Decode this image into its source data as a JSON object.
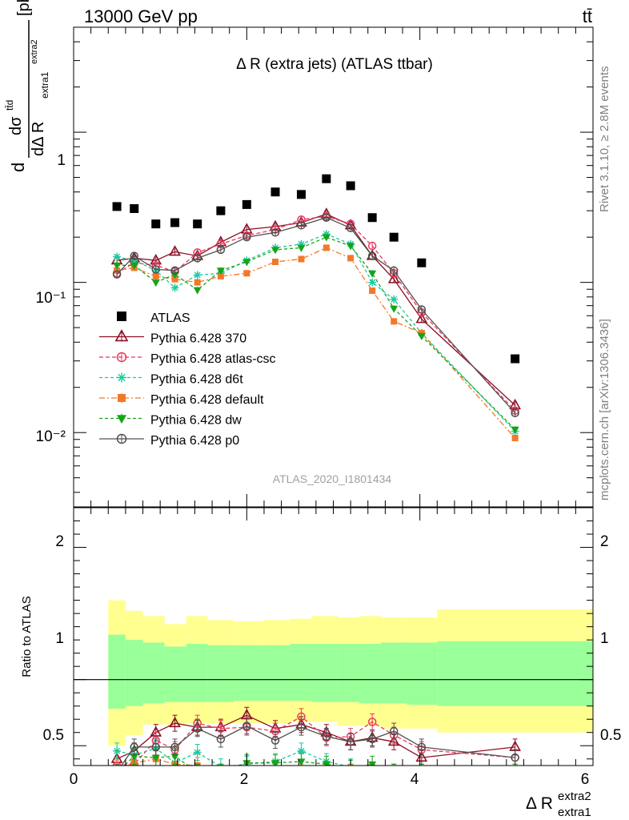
{
  "header": {
    "left_label": "13000 GeV pp",
    "right_label": "tt̄"
  },
  "side_labels": {
    "upper": "Rivet 3.1.10, ≥ 2.8M events",
    "lower": "mcplots.cern.ch [arXiv:1306.3436]"
  },
  "colors": {
    "ATLAS": "#000000",
    "p370": "#8b0f24",
    "atlascsc": "#e8385e",
    "d6t": "#1ec8a0",
    "default": "#f07a2a",
    "dw": "#17a317",
    "p0": "#505050",
    "band_yellow": "#ffff90",
    "band_green": "#99ff99"
  },
  "chart_data": [
    {
      "type": "scatter",
      "title": "Δ R (extra jets) (ATLAS ttbar)",
      "watermark": "ATLAS_2020_I1801434",
      "xlabel": "Δ R",
      "xlabel_sup": "extra2",
      "xlabel_sub": "extra1",
      "ylabel_main": "d",
      "ylabel_num": "dσ",
      "ylabel_num_sup": "tt̄d",
      "ylabel_den": "dΔ R",
      "ylabel_den_sub": "extra1",
      "ylabel_den_sup": "extra2",
      "ylabel_unit": "[pb]",
      "yscale": "log",
      "xlim": [
        0,
        6
      ],
      "ylim": [
        0.0032,
        5
      ],
      "y_tick_labels": [
        "10⁻²",
        "10⁻¹",
        "1"
      ],
      "x": [
        0.5,
        0.7,
        0.95,
        1.17,
        1.43,
        1.7,
        2.0,
        2.33,
        2.63,
        2.92,
        3.2,
        3.45,
        3.7,
        4.02,
        5.1
      ],
      "series": [
        {
          "name": "ATLAS",
          "key": "ATLAS",
          "values": [
            0.32,
            0.31,
            0.245,
            0.25,
            0.245,
            0.3,
            0.33,
            0.4,
            0.385,
            0.49,
            0.44,
            0.27,
            0.2,
            0.135,
            0.031
          ]
        },
        {
          "name": "Pythia 6.428 370",
          "key": "p370",
          "values": [
            0.14,
            0.145,
            0.14,
            0.16,
            0.15,
            0.185,
            0.225,
            0.235,
            0.25,
            0.285,
            0.24,
            0.15,
            0.105,
            0.057,
            0.0152
          ]
        },
        {
          "name": "Pythia 6.428 atlas-csc",
          "key": "atlascsc",
          "values": [
            0.115,
            0.135,
            0.13,
            0.118,
            0.158,
            0.18,
            0.205,
            0.225,
            0.262,
            0.275,
            0.245,
            0.175,
            0.115,
            0.063,
            0.014
          ]
        },
        {
          "name": "Pythia 6.428 d6t",
          "key": "d6t",
          "values": [
            0.148,
            0.14,
            0.12,
            0.092,
            0.112,
            0.115,
            0.14,
            0.17,
            0.18,
            0.21,
            0.18,
            0.1,
            0.077,
            0.046,
            0.0102
          ]
        },
        {
          "name": "Pythia 6.428 default",
          "key": "default",
          "values": [
            0.12,
            0.125,
            0.11,
            0.105,
            0.1,
            0.11,
            0.115,
            0.137,
            0.143,
            0.17,
            0.145,
            0.088,
            0.055,
            0.046,
            0.0092
          ]
        },
        {
          "name": "Pythia 6.428 dw",
          "key": "dw",
          "values": [
            0.13,
            0.13,
            0.1,
            0.113,
            0.089,
            0.12,
            0.137,
            0.165,
            0.17,
            0.2,
            0.175,
            0.115,
            0.067,
            0.044,
            0.0105
          ]
        },
        {
          "name": "Pythia 6.428 p0",
          "key": "p0",
          "values": [
            0.113,
            0.15,
            0.122,
            0.12,
            0.145,
            0.165,
            0.2,
            0.215,
            0.24,
            0.27,
            0.23,
            0.15,
            0.12,
            0.066,
            0.0135
          ]
        }
      ]
    },
    {
      "type": "scatter",
      "ylabel": "Ratio to ATLAS",
      "xlim": [
        0,
        6
      ],
      "ylim": [
        0.35,
        2.3
      ],
      "x_tick_labels": [
        "0",
        "2",
        "4",
        "6"
      ],
      "y_tick_labels": [
        "0.5",
        "1",
        "2"
      ],
      "band_edges": [
        0.4,
        0.6,
        0.8,
        1.05,
        1.3,
        1.55,
        1.85,
        2.2,
        2.5,
        2.75,
        3.05,
        3.3,
        3.55,
        3.85,
        4.2,
        6.0
      ],
      "band_yellow_hi": [
        1.6,
        1.52,
        1.48,
        1.42,
        1.48,
        1.45,
        1.44,
        1.45,
        1.46,
        1.48,
        1.47,
        1.48,
        1.47,
        1.47,
        1.53
      ],
      "band_yellow_lo": [
        0.5,
        0.58,
        0.66,
        0.66,
        0.67,
        0.67,
        0.67,
        0.67,
        0.68,
        0.68,
        0.65,
        0.65,
        0.63,
        0.63,
        0.6
      ],
      "band_green_hi": [
        1.34,
        1.3,
        1.28,
        1.25,
        1.27,
        1.26,
        1.26,
        1.26,
        1.27,
        1.27,
        1.27,
        1.27,
        1.28,
        1.28,
        1.29
      ],
      "band_green_lo": [
        0.78,
        0.8,
        0.82,
        0.83,
        0.83,
        0.83,
        0.84,
        0.84,
        0.84,
        0.83,
        0.83,
        0.82,
        0.82,
        0.81,
        0.8
      ],
      "reference_line": 1,
      "x": [
        0.5,
        0.7,
        0.95,
        1.17,
        1.43,
        1.7,
        2.0,
        2.33,
        2.63,
        2.92,
        3.2,
        3.45,
        3.7,
        4.02,
        5.1
      ],
      "series": [
        {
          "key": "p370",
          "values": [
            0.4,
            0.46,
            0.6,
            0.67,
            0.64,
            0.64,
            0.73,
            0.63,
            0.66,
            0.6,
            0.53,
            0.56,
            0.53,
            0.41,
            0.49
          ]
        },
        {
          "key": "atlascsc",
          "values": [
            0.35,
            0.36,
            0.54,
            0.47,
            0.67,
            0.63,
            0.64,
            0.61,
            0.72,
            0.56,
            0.57,
            0.68,
            0.58,
            0.47,
            0.41
          ]
        },
        {
          "key": "d6t",
          "values": [
            0.46,
            0.43,
            0.48,
            0.37,
            0.45,
            0.34,
            0.36,
            0.38,
            0.46,
            0.38,
            0.34,
            0.3,
            0.3,
            0.3,
            0.3
          ]
        },
        {
          "key": "default",
          "values": [
            0.33,
            0.37,
            0.4,
            0.36,
            0.35,
            0.3,
            0.3,
            0.3,
            0.3,
            0.3,
            0.3,
            0.3,
            0.3,
            0.3,
            0.3
          ]
        },
        {
          "key": "dw",
          "values": [
            0.3,
            0.42,
            0.41,
            0.42,
            0.3,
            0.3,
            0.37,
            0.37,
            0.38,
            0.36,
            0.33,
            0.36,
            0.3,
            0.3,
            0.3
          ]
        },
        {
          "key": "p0",
          "values": [
            0.3,
            0.49,
            0.49,
            0.49,
            0.63,
            0.55,
            0.65,
            0.54,
            0.64,
            0.57,
            0.53,
            0.55,
            0.61,
            0.49,
            0.41
          ]
        }
      ]
    }
  ]
}
